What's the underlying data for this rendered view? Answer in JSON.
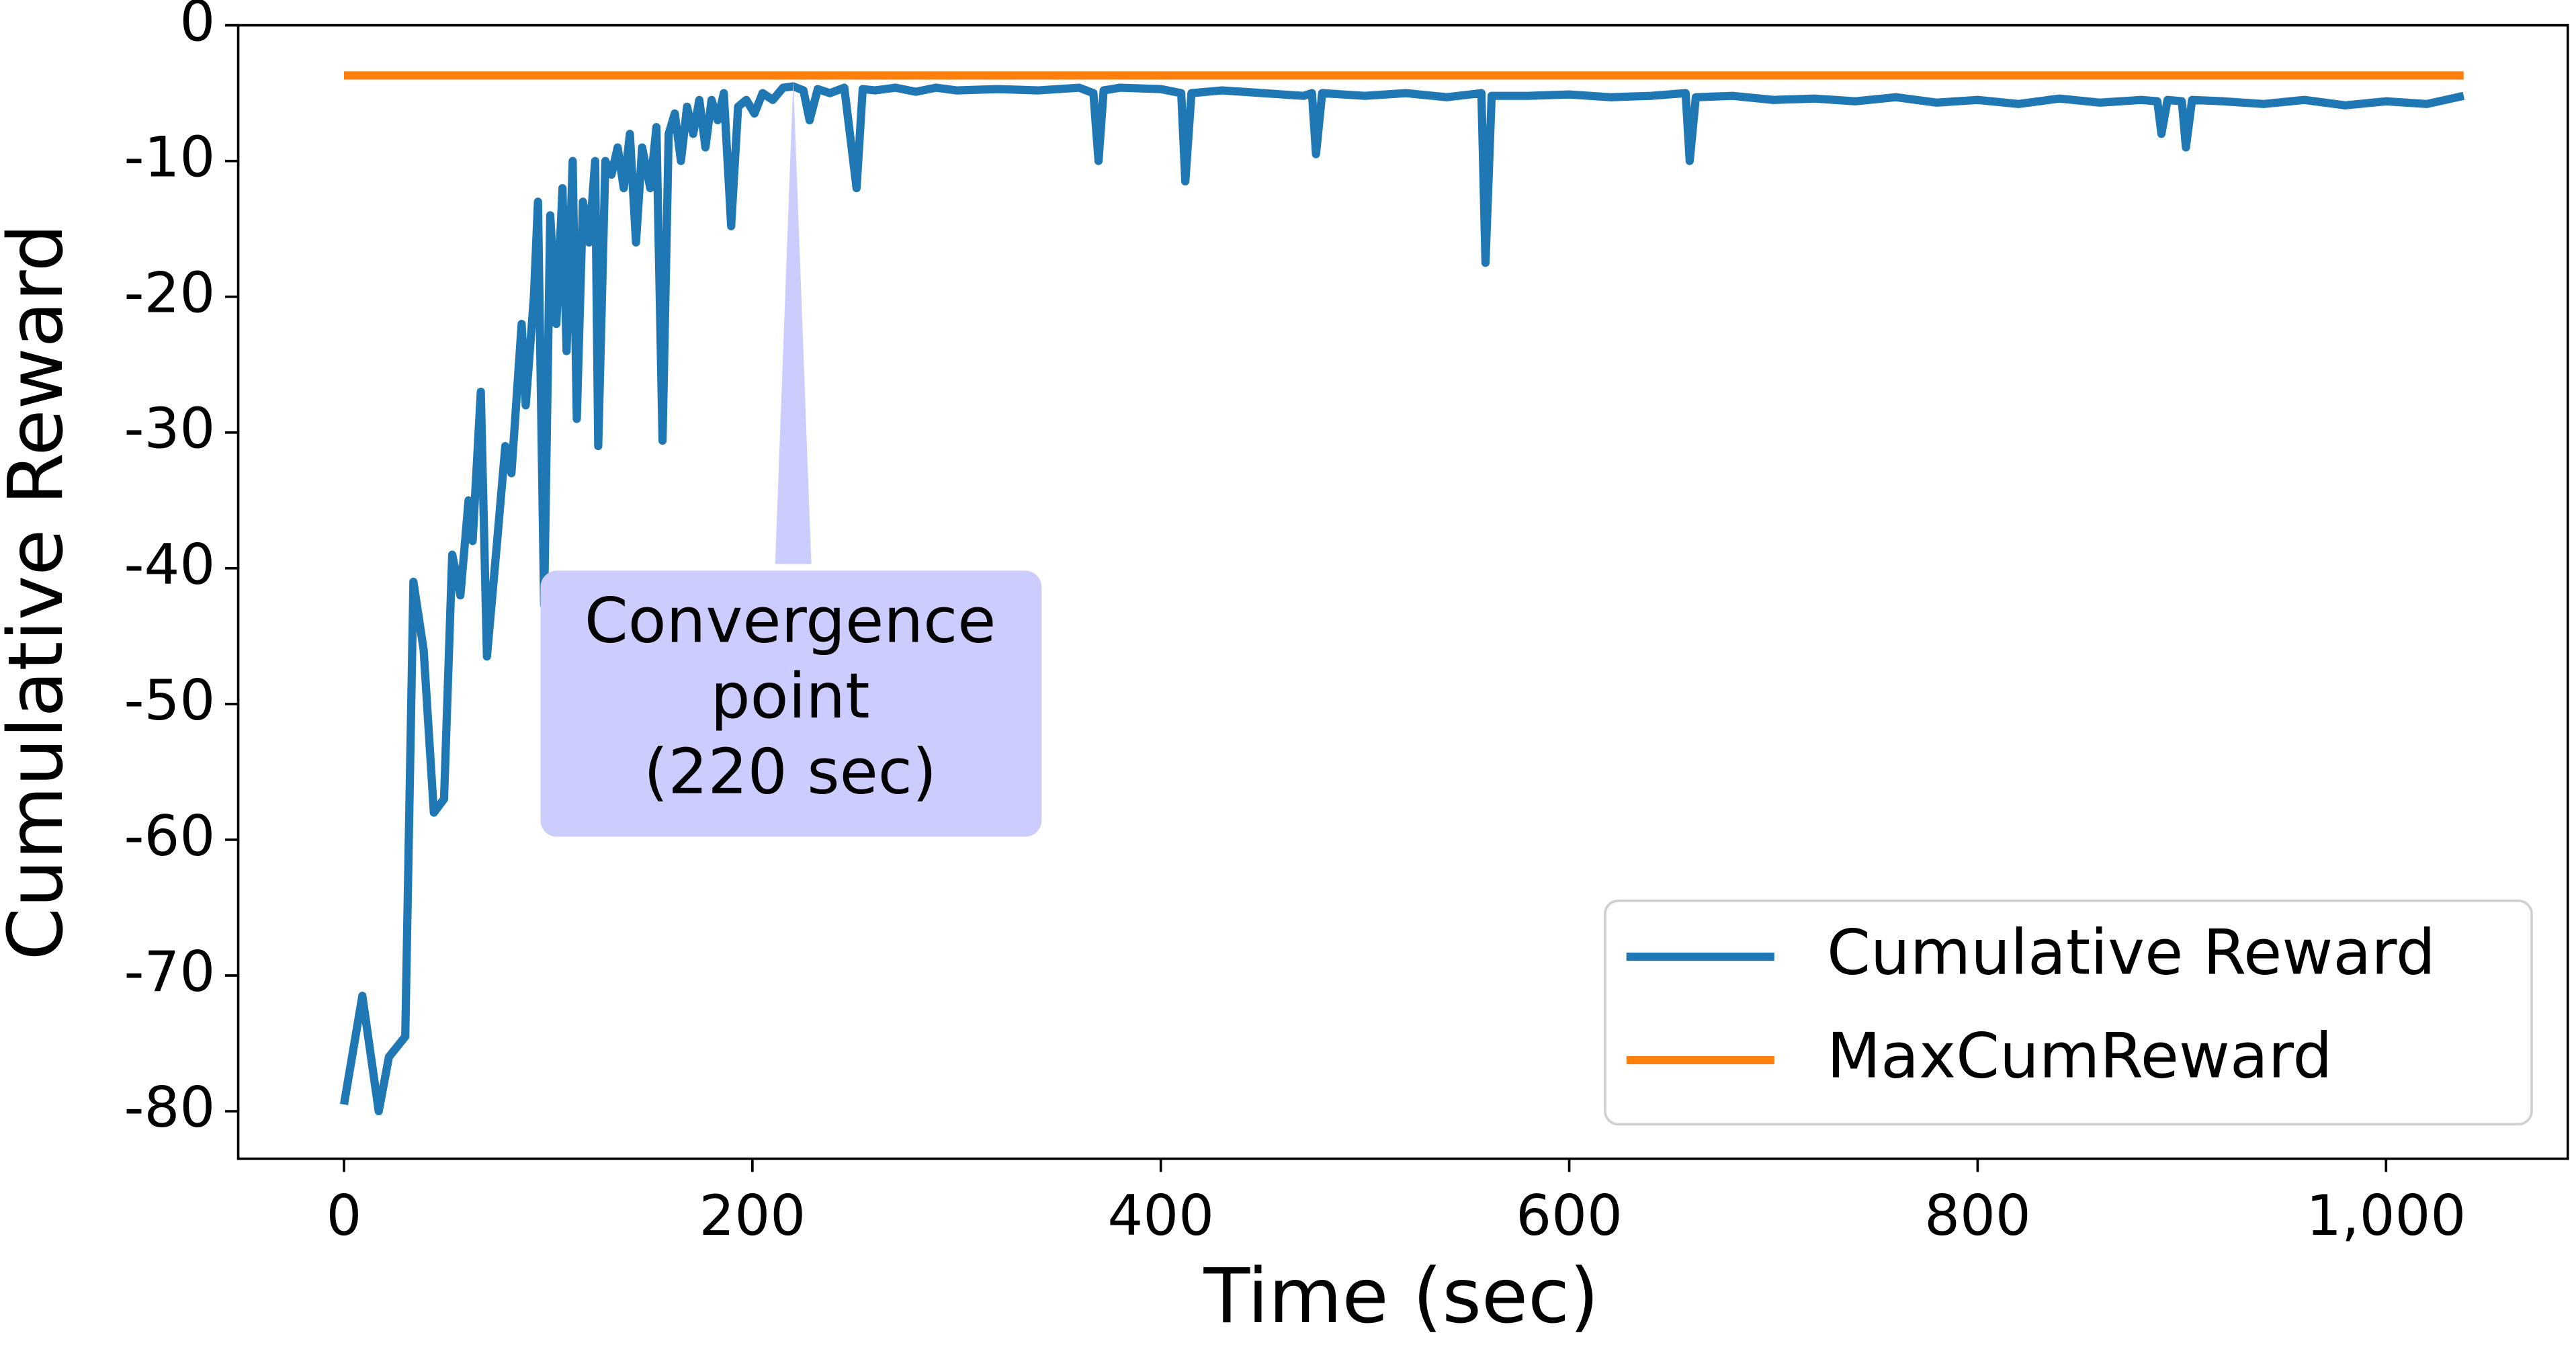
{
  "chart_data": {
    "type": "line",
    "x_label": "Time (sec)",
    "y_label": "Cumulative Reward",
    "xlim": [
      -51.8,
      1089
    ],
    "ylim": [
      -83.5,
      0
    ],
    "xticks": [
      0,
      200,
      400,
      600,
      800,
      {
        "value": 1000,
        "label": "1,000"
      }
    ],
    "yticks": [
      0,
      -10,
      -20,
      -30,
      -40,
      -50,
      -60,
      -70,
      -80
    ],
    "legend": "lower right",
    "series": [
      {
        "name": "Cumulative Reward",
        "color": "#1f77b4",
        "x": [
          0,
          9,
          17,
          22,
          30,
          34,
          39,
          44,
          49,
          53,
          57,
          61,
          63,
          67,
          70,
          75,
          79,
          82,
          87,
          89,
          93,
          95,
          98,
          101,
          104,
          107,
          109,
          112,
          114,
          117,
          120,
          123,
          124.5,
          128,
          131,
          134,
          137,
          140,
          143,
          146,
          150,
          153,
          156,
          159,
          162,
          165,
          168,
          171,
          174,
          177,
          180,
          183,
          186,
          189.6,
          193,
          197,
          201,
          205,
          210,
          215,
          220,
          225,
          228,
          232,
          238,
          245,
          251,
          254,
          260,
          270,
          280,
          290,
          300,
          320,
          340,
          360,
          367,
          369.5,
          372,
          380,
          400,
          410,
          412,
          415,
          430,
          450,
          470,
          474,
          476,
          479,
          500,
          520,
          540,
          557,
          559,
          562,
          580,
          600,
          620,
          640,
          657,
          659,
          662,
          680,
          700,
          720,
          740,
          760,
          780,
          800,
          820,
          840,
          860,
          880,
          888,
          890,
          893,
          900,
          902,
          905,
          920,
          940,
          960,
          980,
          1000,
          1020,
          1038
        ],
        "values": [
          -79.5,
          -71.5,
          -80,
          -76,
          -74.5,
          -41,
          -46,
          -58,
          -57,
          -39,
          -42,
          -35,
          -38,
          -27,
          -46.5,
          -38,
          -31,
          -33,
          -22,
          -28,
          -20,
          -13,
          -42.7,
          -14,
          -22,
          -12,
          -24,
          -10,
          -29,
          -13,
          -16,
          -10,
          -31,
          -10,
          -11,
          -9,
          -12,
          -8,
          -16,
          -9,
          -12,
          -7.5,
          -30.6,
          -8,
          -6.5,
          -10,
          -6,
          -8,
          -5.5,
          -9,
          -5.5,
          -7,
          -5,
          -14.8,
          -6,
          -5.5,
          -6.5,
          -5,
          -5.5,
          -4.6,
          -4.5,
          -4.8,
          -7,
          -4.7,
          -5,
          -4.6,
          -12,
          -4.7,
          -4.8,
          -4.6,
          -4.9,
          -4.6,
          -4.8,
          -4.7,
          -4.8,
          -4.6,
          -5,
          -10,
          -4.8,
          -4.6,
          -4.7,
          -5,
          -11.5,
          -5,
          -4.8,
          -5,
          -5.2,
          -5,
          -9.5,
          -5,
          -5.2,
          -5,
          -5.3,
          -5,
          -17.5,
          -5.2,
          -5.2,
          -5.1,
          -5.3,
          -5.2,
          -5,
          -10,
          -5.3,
          -5.2,
          -5.5,
          -5.4,
          -5.6,
          -5.3,
          -5.7,
          -5.5,
          -5.8,
          -5.4,
          -5.7,
          -5.5,
          -5.6,
          -8,
          -5.5,
          -5.6,
          -9,
          -5.5,
          -5.6,
          -5.8,
          -5.5,
          -5.9,
          -5.6,
          -5.8,
          -5.2
        ]
      },
      {
        "name": "MaxCumReward",
        "color": "#ff7f0e",
        "x": [
          0,
          1038
        ],
        "values": [
          -3.7,
          -3.7
        ]
      }
    ],
    "annotation": {
      "lines": [
        "Convergence",
        "point",
        "(220 sec)"
      ],
      "x": 220,
      "y": -4
    }
  }
}
